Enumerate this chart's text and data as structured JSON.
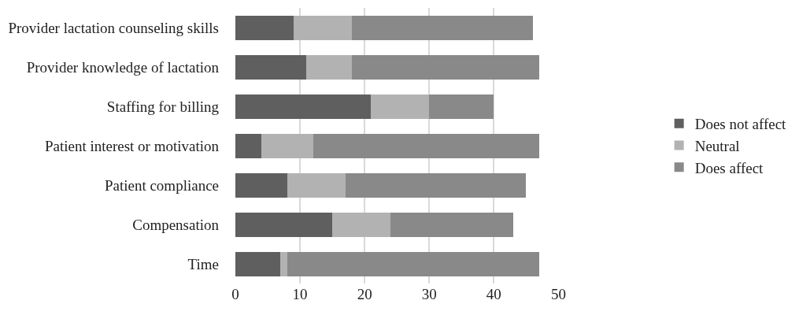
{
  "chart_data": {
    "type": "bar",
    "orientation": "horizontal",
    "stacked": true,
    "categories": [
      "Provider lactation counseling skills",
      "Provider knowledge of lactation",
      "Staffing for billing",
      "Patient interest or motivation",
      "Patient compliance",
      "Compensation",
      "Time"
    ],
    "series": [
      {
        "name": "Does not affect",
        "color": "#5f5f5f",
        "values": [
          9,
          11,
          21,
          4,
          8,
          15,
          7
        ]
      },
      {
        "name": "Neutral",
        "color": "#b2b2b2",
        "values": [
          9,
          7,
          9,
          8,
          9,
          9,
          1
        ]
      },
      {
        "name": "Does affect",
        "color": "#898989",
        "values": [
          28,
          29,
          10,
          35,
          28,
          19,
          39
        ]
      }
    ],
    "xlim": [
      0,
      50
    ],
    "xticks": [
      0,
      10,
      20,
      30,
      40,
      50
    ],
    "grid": "x",
    "legend": "right"
  }
}
